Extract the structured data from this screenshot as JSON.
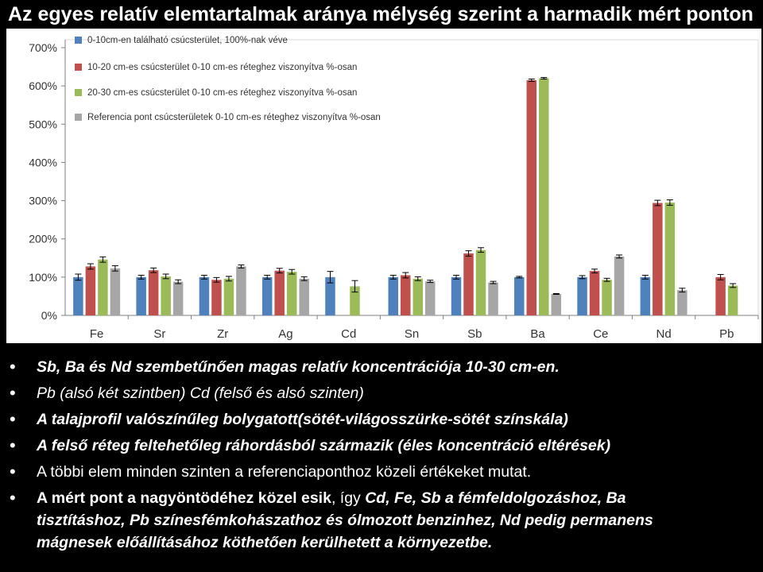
{
  "title": "Az egyes relatív elemtartalmak aránya mélység szerint a harmadik mért ponton",
  "colors": {
    "series": [
      "#4f81bd",
      "#c0504d",
      "#9bbb59",
      "#a6a6a6"
    ]
  },
  "chart_data": {
    "type": "bar",
    "categories": [
      "Fe",
      "Sr",
      "Zr",
      "Ag",
      "Cd",
      "Sn",
      "Sb",
      "Ba",
      "Ce",
      "Nd",
      "Pb"
    ],
    "y_ticks": [
      "0%",
      "100%",
      "200%",
      "300%",
      "400%",
      "500%",
      "600%",
      "700%"
    ],
    "ylim": [
      0,
      700
    ],
    "error_bars": true,
    "legend_position": "top-left",
    "series": [
      {
        "name": "0-10cm-en található csúcsterület, 100%-nak véve",
        "values": [
          100,
          100,
          100,
          100,
          100,
          100,
          100,
          100,
          100,
          100,
          null
        ],
        "errors": [
          8,
          5,
          5,
          5,
          15,
          5,
          5,
          2,
          4,
          5,
          null
        ]
      },
      {
        "name": "10-20 cm-es csúcsterület 0-10 cm-es réteghez viszonyítva %-osan",
        "values": [
          128,
          118,
          93,
          117,
          null,
          105,
          162,
          615,
          116,
          294,
          100
        ],
        "errors": [
          7,
          6,
          6,
          6,
          null,
          7,
          7,
          3,
          5,
          7,
          7
        ]
      },
      {
        "name": "20-30 cm-es csúcsterület 0-10 cm-es réteghez viszonyítva %-osan",
        "values": [
          146,
          102,
          96,
          114,
          76,
          96,
          171,
          620,
          93,
          295,
          78
        ],
        "errors": [
          7,
          6,
          6,
          6,
          15,
          5,
          6,
          2,
          4,
          7,
          5
        ]
      },
      {
        "name": "Referencia pont csúcsterületek 0-10 cm-es réteghez viszonyítva %-osan",
        "values": [
          123,
          88,
          128,
          96,
          null,
          89,
          86,
          56,
          154,
          66,
          null
        ],
        "errors": [
          7,
          5,
          4,
          5,
          null,
          3,
          3,
          1,
          4,
          5,
          null
        ]
      }
    ]
  },
  "bullets": [
    {
      "runs": [
        {
          "text": "Sb, Ba és Nd szembetűnően magas relatív koncentrációja 10-30 cm-en.",
          "style": "bi"
        }
      ]
    },
    {
      "runs": [
        {
          "text": "Pb (alsó két szintben) Cd (felső és alsó szinten)",
          "style": "i"
        }
      ]
    },
    {
      "runs": [
        {
          "text": "A talajprofil valószínűleg bolygatott(sötét-világosszürke-sötét színskála)",
          "style": "bi"
        }
      ]
    },
    {
      "runs": [
        {
          "text": "A felső réteg feltehetőleg ráhordásból származik (éles koncentráció eltérések)",
          "style": "bi"
        }
      ]
    },
    {
      "runs": [
        {
          "text": "A többi elem minden szinten a referenciaponthoz közeli értékeket mutat.",
          "style": ""
        }
      ]
    },
    {
      "runs": [
        {
          "text": "A mért pont a nagyöntödéhez közel esik",
          "style": "b"
        },
        {
          "text": ", így ",
          "style": ""
        },
        {
          "text": "Cd, Fe, Sb a fémfeldolgozáshoz, Ba",
          "style": "bi"
        }
      ]
    },
    {
      "runs": [
        {
          "text": "tisztításhoz, Pb színesfémkohászathoz és ólmozott benzinhez, Nd pedig permanens",
          "style": "bi"
        }
      ]
    },
    {
      "runs": [
        {
          "text": "mágnesek előállításához köthetően kerülhetett a környezetbe.",
          "style": "bi"
        }
      ]
    }
  ]
}
